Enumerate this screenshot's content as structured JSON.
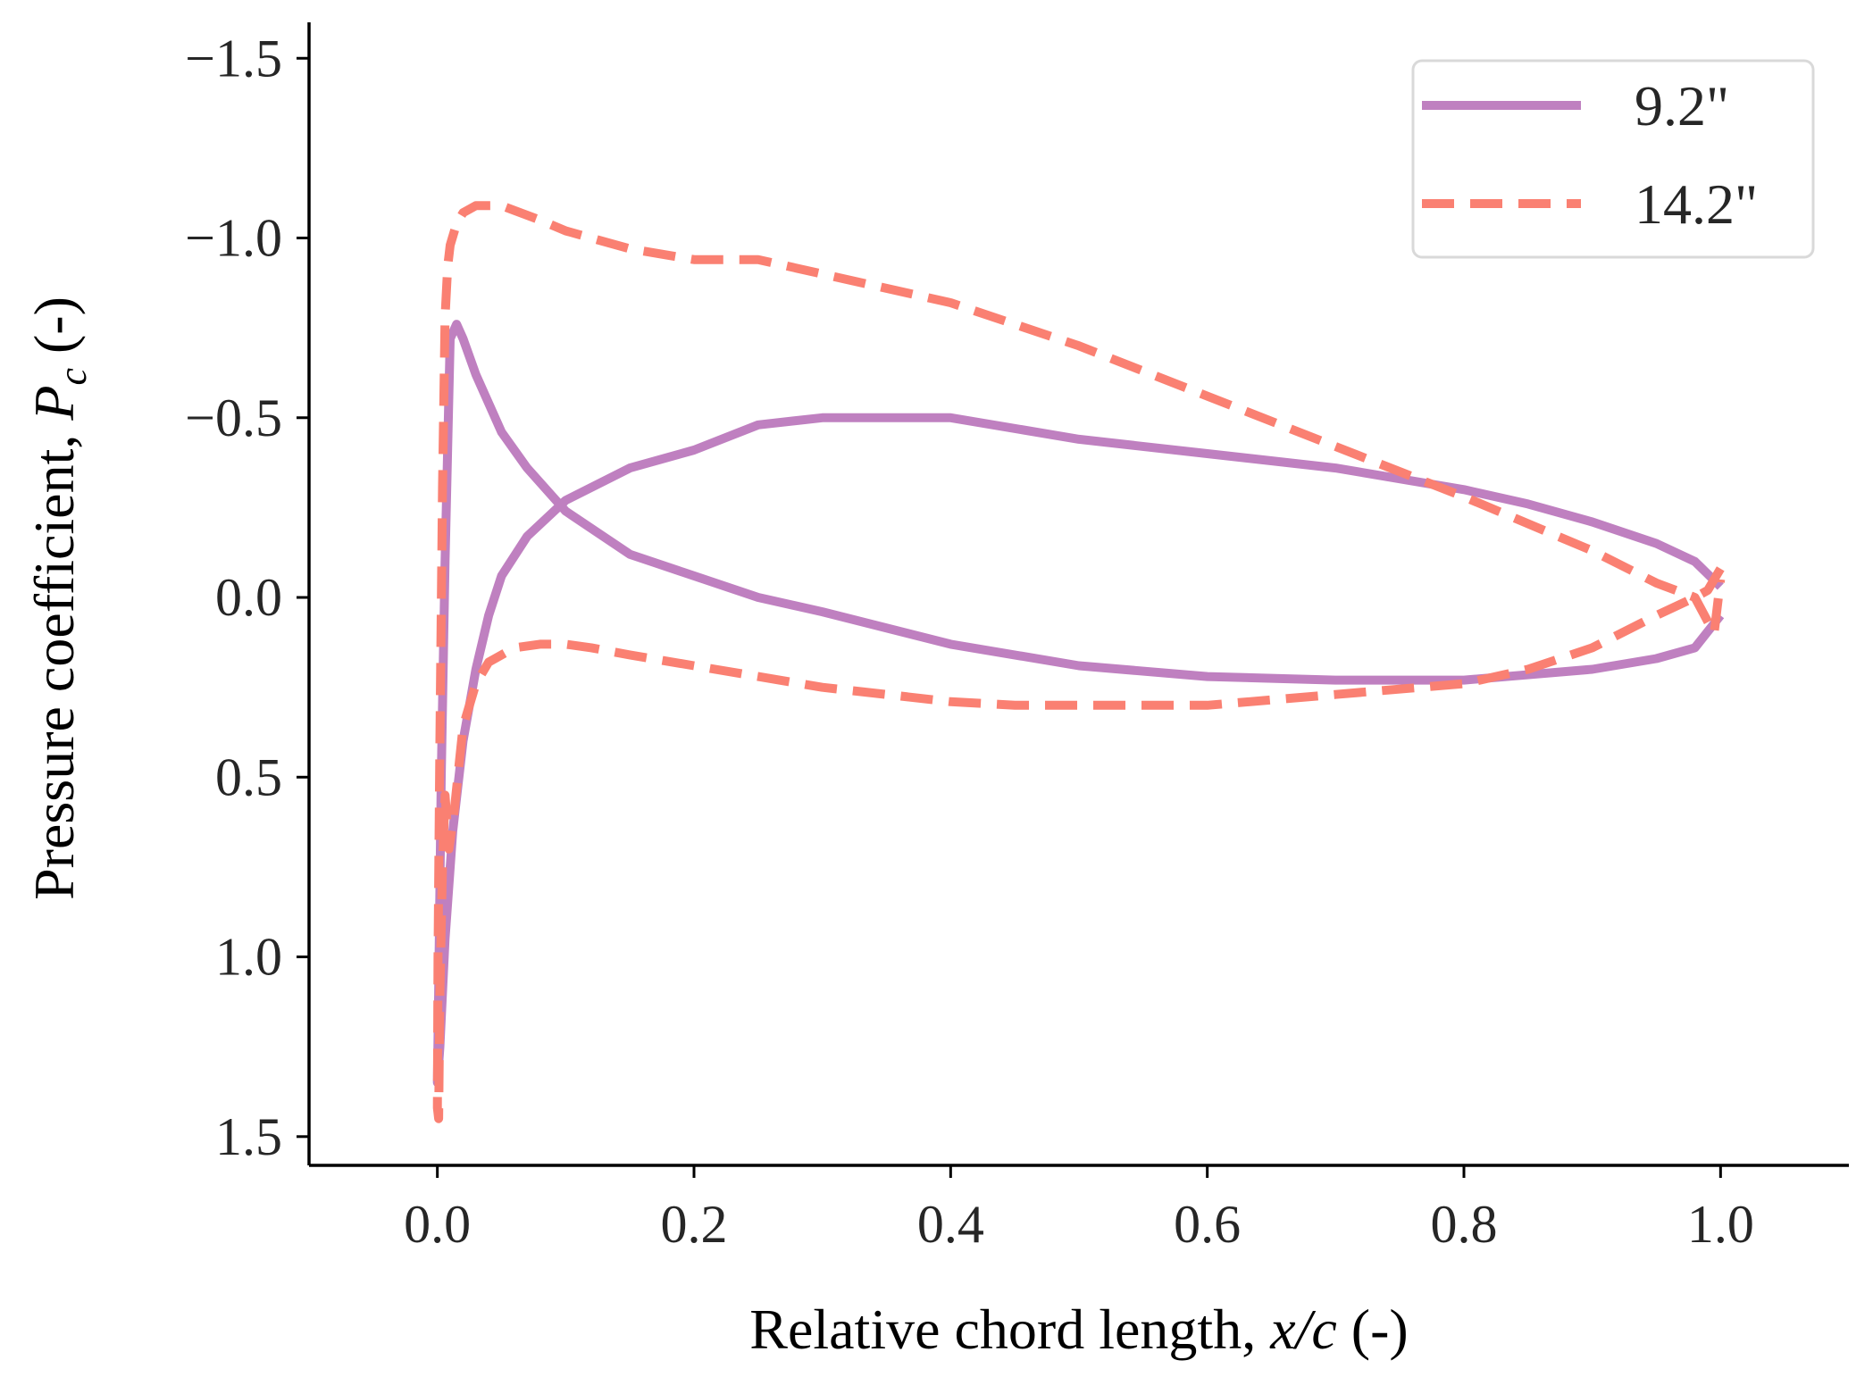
{
  "chart_data": {
    "type": "line",
    "title": "",
    "xlabel": "Relative chord length, x/c (-)",
    "xlabel_parts": {
      "prefix": "Relative chord length, ",
      "var": "x/c",
      "suffix": " (-)"
    },
    "ylabel": "Pressure coefficient, P_c (-)",
    "ylabel_parts": {
      "prefix": "Pressure coefficient, ",
      "var": "P",
      "sub": "c",
      "suffix": " (-)"
    },
    "xlim": [
      -0.1,
      1.1
    ],
    "ylim": [
      1.58,
      -1.6
    ],
    "y_inverted": true,
    "xticks": [
      0.0,
      0.2,
      0.4,
      0.6,
      0.8,
      1.0
    ],
    "xtick_labels": [
      "0.0",
      "0.2",
      "0.4",
      "0.6",
      "0.8",
      "1.0"
    ],
    "yticks": [
      -1.5,
      -1.0,
      -0.5,
      0.0,
      0.5,
      1.0,
      1.5
    ],
    "ytick_labels": [
      "−1.5",
      "−1.0",
      "−0.5",
      "0.0",
      "0.5",
      "1.0",
      "1.5"
    ],
    "grid": false,
    "legend_position": "top-right",
    "series": [
      {
        "name": "9.2\"",
        "color": "#bf80c0",
        "style": "solid",
        "x": [
          1.0,
          0.98,
          0.95,
          0.9,
          0.85,
          0.8,
          0.7,
          0.6,
          0.5,
          0.4,
          0.3,
          0.25,
          0.2,
          0.15,
          0.1,
          0.07,
          0.05,
          0.04,
          0.03,
          0.02,
          0.012,
          0.006,
          0.002,
          0.0,
          0.001,
          0.003,
          0.006,
          0.01,
          0.015,
          0.02,
          0.03,
          0.05,
          0.07,
          0.1,
          0.15,
          0.2,
          0.25,
          0.3,
          0.4,
          0.5,
          0.6,
          0.7,
          0.8,
          0.9,
          0.95,
          0.98,
          1.0
        ],
        "y": [
          -0.03,
          -0.1,
          -0.15,
          -0.21,
          -0.26,
          -0.3,
          -0.36,
          -0.4,
          -0.44,
          -0.5,
          -0.5,
          -0.48,
          -0.41,
          -0.36,
          -0.27,
          -0.17,
          -0.06,
          0.05,
          0.2,
          0.4,
          0.65,
          0.95,
          1.25,
          1.35,
          1.1,
          0.5,
          -0.1,
          -0.72,
          -0.76,
          -0.72,
          -0.62,
          -0.46,
          -0.36,
          -0.24,
          -0.12,
          -0.06,
          0.0,
          0.04,
          0.13,
          0.19,
          0.22,
          0.23,
          0.23,
          0.2,
          0.17,
          0.14,
          0.05
        ]
      },
      {
        "name": "14.2\"",
        "color": "#fa8072",
        "style": "dashed",
        "x": [
          1.0,
          0.99,
          0.98,
          0.95,
          0.9,
          0.85,
          0.8,
          0.7,
          0.6,
          0.5,
          0.45,
          0.4,
          0.35,
          0.3,
          0.25,
          0.2,
          0.15,
          0.12,
          0.1,
          0.08,
          0.06,
          0.04,
          0.03,
          0.02,
          0.013,
          0.009,
          0.006,
          0.004,
          0.002,
          0.001,
          0.0,
          0.0005,
          0.002,
          0.004,
          0.006,
          0.008,
          0.01,
          0.015,
          0.02,
          0.03,
          0.05,
          0.08,
          0.1,
          0.15,
          0.2,
          0.25,
          0.3,
          0.4,
          0.5,
          0.6,
          0.7,
          0.8,
          0.9,
          0.95,
          0.98,
          0.995,
          1.0
        ],
        "y": [
          -0.08,
          -0.02,
          0.0,
          0.05,
          0.14,
          0.2,
          0.24,
          0.27,
          0.3,
          0.3,
          0.3,
          0.29,
          0.27,
          0.25,
          0.22,
          0.19,
          0.16,
          0.14,
          0.13,
          0.13,
          0.14,
          0.18,
          0.24,
          0.36,
          0.6,
          0.7,
          0.55,
          0.75,
          1.1,
          1.45,
          1.42,
          1.0,
          0.4,
          -0.3,
          -0.78,
          -0.92,
          -0.98,
          -1.04,
          -1.07,
          -1.09,
          -1.09,
          -1.05,
          -1.02,
          -0.97,
          -0.94,
          -0.94,
          -0.9,
          -0.82,
          -0.7,
          -0.56,
          -0.42,
          -0.28,
          -0.13,
          -0.04,
          0.0,
          0.1,
          -0.05
        ]
      }
    ]
  }
}
